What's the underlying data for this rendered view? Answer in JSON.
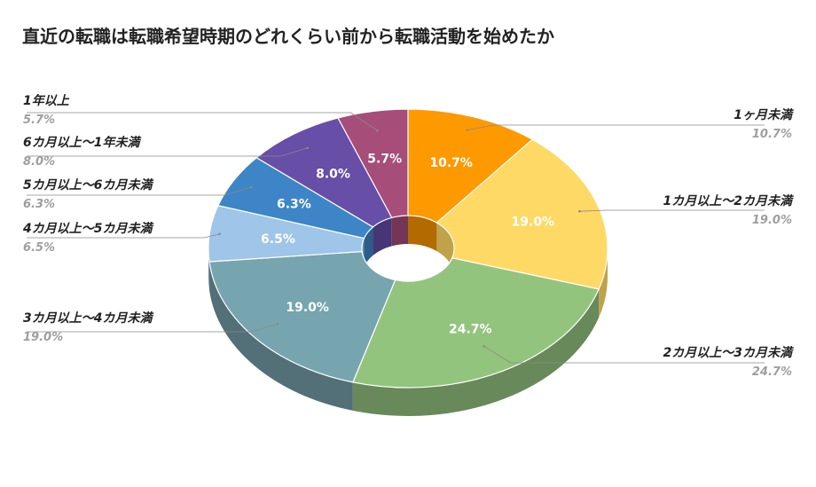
{
  "chart_data": {
    "type": "pie",
    "variant": "3d-donut",
    "title": "直近の転職は転職希望時期のどれくらい前から転職活動を始めたか",
    "unit": "%",
    "legend": "labels-outside-with-leader-lines",
    "slices": [
      {
        "label": "1ヶ月未満",
        "value": 10.7,
        "display": "10.7%",
        "color": "#ff9900",
        "side_color": "#b36b00"
      },
      {
        "label": "1カ月以上〜2カ月未満",
        "value": 19.0,
        "display": "19.0%",
        "color": "#ffd966",
        "side_color": "#bfa24a"
      },
      {
        "label": "2カ月以上〜3カ月未満",
        "value": 24.7,
        "display": "24.7%",
        "color": "#93c47d",
        "side_color": "#68895a"
      },
      {
        "label": "3カ月以上〜4カ月未満",
        "value": 19.0,
        "display": "19.0%",
        "color": "#76a5af",
        "side_color": "#536f77"
      },
      {
        "label": "4カ月以上〜5カ月未満",
        "value": 6.5,
        "display": "6.5%",
        "color": "#9fc5e8",
        "side_color": "#6f8ba3"
      },
      {
        "label": "5カ月以上〜6カ月未満",
        "value": 6.3,
        "display": "6.3%",
        "color": "#3d85c6",
        "side_color": "#2a5d8a"
      },
      {
        "label": "6カ月以上〜1年未満",
        "value": 8.0,
        "display": "8.0%",
        "color": "#674ea7",
        "side_color": "#473675"
      },
      {
        "label": "1年以上",
        "value": 5.7,
        "display": "5.7%",
        "color": "#a64d79",
        "side_color": "#743655"
      }
    ]
  }
}
